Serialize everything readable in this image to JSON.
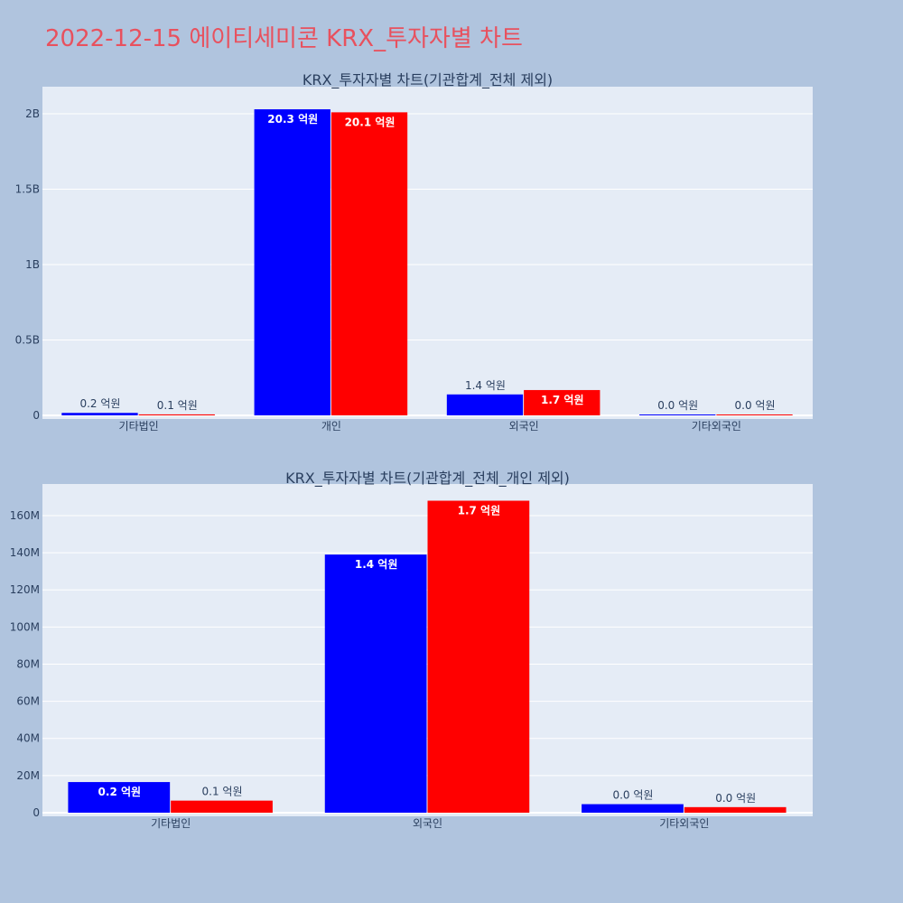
{
  "page": {
    "title": "2022-12-15 에이티세미콘 KRX_투자자별 차트"
  },
  "colors": {
    "background": "#b0c4de",
    "plot_bg": "#e5ecf6",
    "title": "#e8515e",
    "text": "#2a3f5f",
    "series_a": "#0000ff",
    "series_b": "#ff0000"
  },
  "chart_data": [
    {
      "type": "bar",
      "title": "KRX_투자자별 차트(기관합계_전체 제외)",
      "categories": [
        "기타법인",
        "개인",
        "외국인",
        "기타외국인"
      ],
      "series": [
        {
          "color": "#0000ff",
          "values": [
            16500000,
            2030000000,
            139000000,
            4600000
          ],
          "labels": [
            "0.2 억원",
            "20.3 억원",
            "1.4 억원",
            "0.0 억원"
          ]
        },
        {
          "color": "#ff0000",
          "values": [
            6500000,
            2010000000,
            168000000,
            3000000
          ],
          "labels": [
            "0.1 억원",
            "20.1 억원",
            "1.7 억원",
            "0.0 억원"
          ]
        }
      ],
      "y_ticks": [
        0,
        500000000,
        1000000000,
        1500000000,
        2000000000
      ],
      "y_tick_labels": [
        "0",
        "0.5B",
        "1B",
        "1.5B",
        "2B"
      ],
      "ylim": [
        0,
        2180000000
      ],
      "grid": true,
      "legend": "none"
    },
    {
      "type": "bar",
      "title": "KRX_투자자별 차트(기관합계_전체_개인 제외)",
      "categories": [
        "기타법인",
        "외국인",
        "기타외국인"
      ],
      "series": [
        {
          "color": "#0000ff",
          "values": [
            16500000,
            139000000,
            4600000
          ],
          "labels": [
            "0.2 억원",
            "1.4 억원",
            "0.0 억원"
          ]
        },
        {
          "color": "#ff0000",
          "values": [
            6500000,
            168000000,
            3000000
          ],
          "labels": [
            "0.1 억원",
            "1.7 억원",
            "0.0 억원"
          ]
        }
      ],
      "y_ticks": [
        0,
        20000000,
        40000000,
        60000000,
        80000000,
        100000000,
        120000000,
        140000000,
        160000000
      ],
      "y_tick_labels": [
        "0",
        "20M",
        "40M",
        "60M",
        "80M",
        "100M",
        "120M",
        "140M",
        "160M"
      ],
      "ylim": [
        0,
        177000000
      ],
      "grid": true,
      "legend": "none"
    }
  ]
}
